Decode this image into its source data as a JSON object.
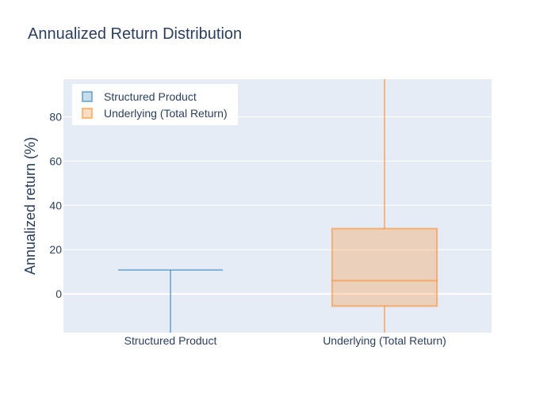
{
  "chart_data": {
    "type": "box",
    "title": "Annualized Return Distribution",
    "xlabel": "",
    "ylabel": "Annualized return (%)",
    "ylim": [
      -17.5,
      97
    ],
    "yticks": [
      0,
      20,
      40,
      60,
      80
    ],
    "categories": [
      "Structured Product",
      "Underlying (Total Return)"
    ],
    "series": [
      {
        "name": "Structured Product",
        "color": "#1f77b4",
        "lowerfence": -17.5,
        "q1": 10.8,
        "median": 10.8,
        "q3": 10.8,
        "upperfence": 10.8
      },
      {
        "name": "Underlying (Total Return)",
        "color": "#ff7f0e",
        "lowerfence": -17.5,
        "q1": -5.5,
        "median": 6,
        "q3": 29.5,
        "upperfence": 97
      }
    ],
    "legend": {
      "position": "top-left"
    },
    "colors": {
      "plot_background": "#e5ecf6",
      "grid": "#ffffff",
      "text": "#2a3f5f"
    }
  }
}
